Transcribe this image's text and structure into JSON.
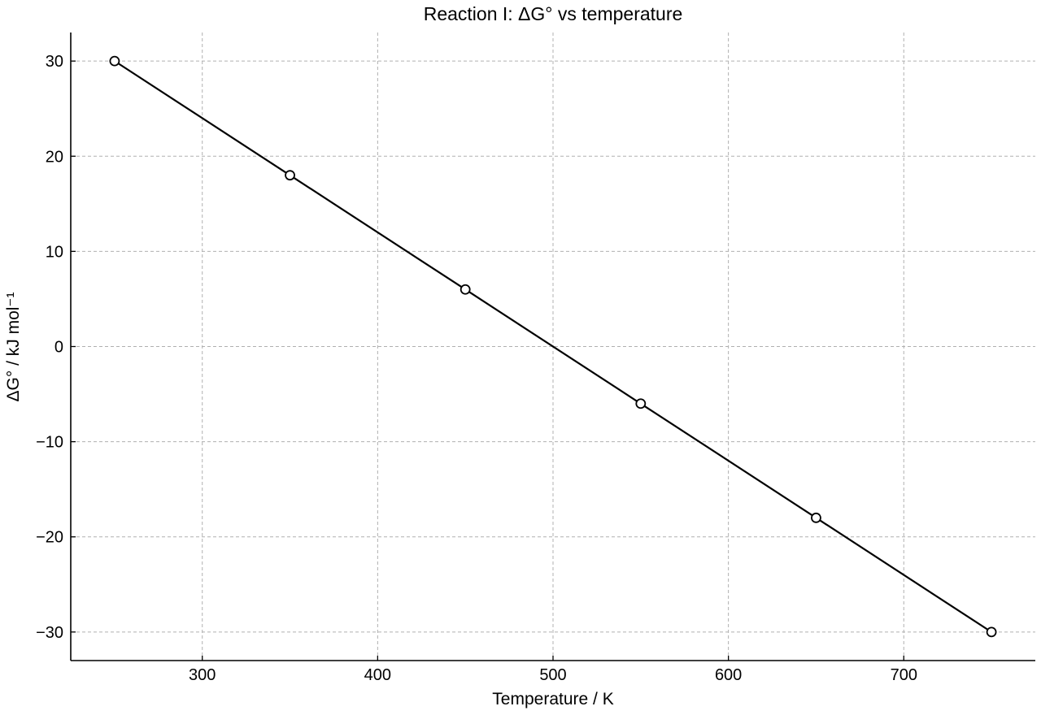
{
  "chart_data": {
    "type": "line",
    "title": "Reaction I: ΔG° vs temperature",
    "xlabel": "Temperature / K",
    "ylabel": "ΔG° / kJ mol⁻¹",
    "xlim": [
      225,
      775
    ],
    "ylim": [
      -33,
      33
    ],
    "xticks": [
      300,
      400,
      500,
      600,
      700
    ],
    "yticks": [
      30,
      20,
      10,
      0,
      -10,
      -20,
      -30
    ],
    "xtick_labels": [
      "300",
      "400",
      "500",
      "600",
      "700"
    ],
    "ytick_labels": [
      "30",
      "20",
      "10",
      "0",
      "−10",
      "−20",
      "−30"
    ],
    "grid": true,
    "series": [
      {
        "x": [
          250,
          350,
          450,
          550,
          650,
          750
        ],
        "y": [
          30,
          18,
          6,
          -6,
          -18,
          -30
        ],
        "color": "#000000",
        "marker": "open-circle"
      }
    ]
  }
}
